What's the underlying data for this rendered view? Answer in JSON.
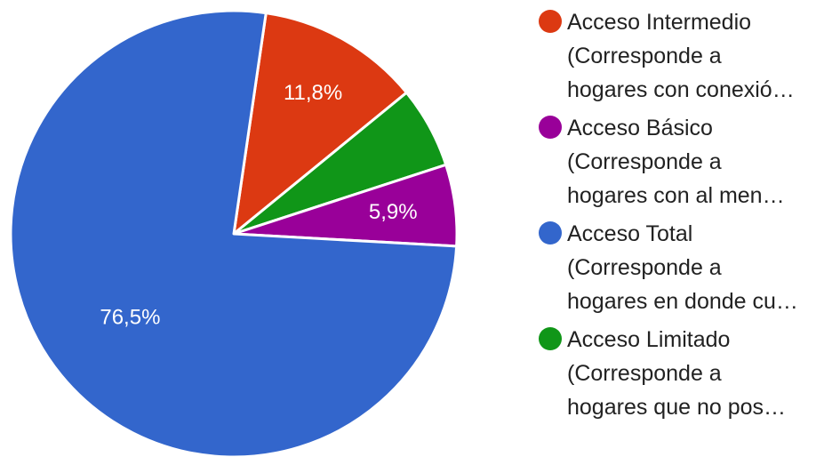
{
  "chart_data": {
    "type": "pie",
    "legend_position": "right",
    "slices": [
      {
        "legend_lines": [
          "Acceso Intermedio",
          "(Corresponde a",
          "hogares con conexió…"
        ],
        "value": 11.8,
        "label": "11,8%",
        "color": "#dc3912"
      },
      {
        "legend_lines": [
          "Acceso Básico",
          "(Corresponde a",
          "hogares con al men…"
        ],
        "value": 5.9,
        "label": "5,9%",
        "color": "#990099"
      },
      {
        "legend_lines": [
          "Acceso Total",
          "(Corresponde a",
          "hogares en donde cu…"
        ],
        "value": 76.5,
        "label": "76,5%",
        "color": "#3366cc"
      },
      {
        "legend_lines": [
          "Acceso Limitado",
          "(Corresponde a",
          "hogares que no pos…"
        ],
        "value": 5.9,
        "label": "",
        "color": "#109618"
      }
    ],
    "draw_order": [
      0,
      3,
      1,
      2
    ]
  }
}
